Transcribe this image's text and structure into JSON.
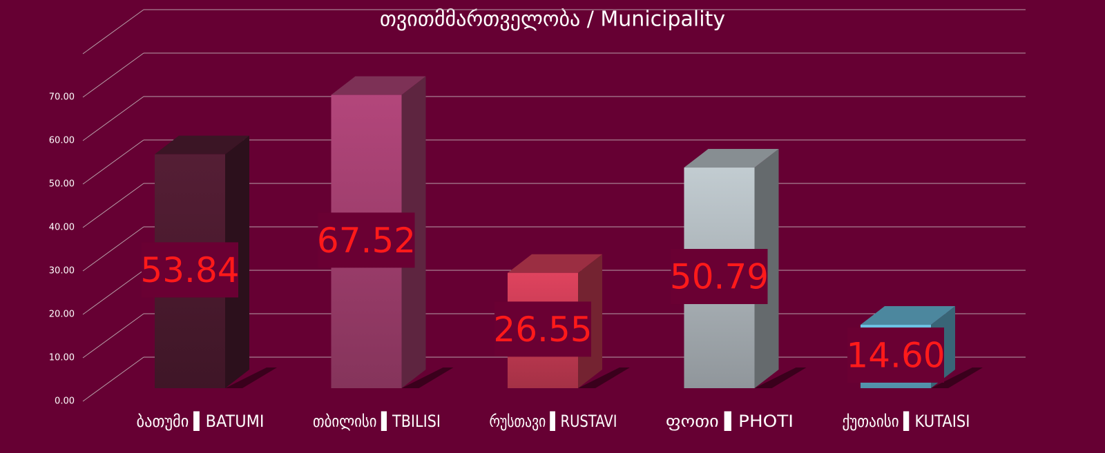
{
  "chart_data": {
    "type": "bar3d",
    "title": "თვითმმართველობა / Municipality",
    "categories": [
      "ბათუმი ▌BATUMI",
      "თბილისი ▌TBILISI",
      "რუსთავი ▌RUSTAVI",
      "ფოთი ▌PHOTI",
      "ქუთაისი ▌KUTAISI"
    ],
    "values": [
      53.84,
      67.52,
      26.55,
      50.79,
      14.6
    ],
    "value_labels": [
      "53.84",
      "67.52",
      "26.55",
      "50.79",
      "14.60"
    ],
    "colors": [
      "#4a1a2e",
      "#9c3d6b",
      "#c23a52",
      "#a9b1b6",
      "#5fa9c6"
    ],
    "ylim": [
      0,
      80
    ],
    "yticks": [
      {
        "value": 0,
        "label": "0.00"
      },
      {
        "value": 10,
        "label": "10.00"
      },
      {
        "value": 20,
        "label": "20.00"
      },
      {
        "value": 30,
        "label": "30.00"
      },
      {
        "value": 40,
        "label": "40.00"
      },
      {
        "value": 50,
        "label": "50.00"
      },
      {
        "value": 60,
        "label": "60.00"
      },
      {
        "value": 70,
        "label": "70.00"
      }
    ],
    "grid": true
  }
}
